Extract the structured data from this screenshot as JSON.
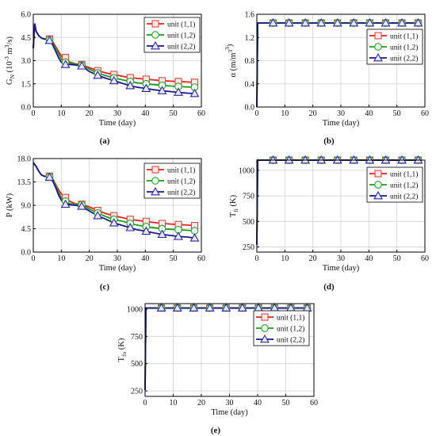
{
  "styles": {
    "colors": [
      "#e8211f",
      "#1f9b1f",
      "#1a1a8c"
    ],
    "fills": [
      "#fde7e7",
      "#e9f7e9",
      "#e6e6f5"
    ],
    "marker_strokes": [
      "#d44a3f",
      "#2f9e2f",
      "#2b2b9a"
    ],
    "markers": [
      "square",
      "circle",
      "triangle"
    ],
    "grid_color": "#d0d0d0"
  },
  "chart_data": [
    {
      "type": "line",
      "caption": "(a)",
      "xlabel": "Time (day)",
      "ylabel_main": "G",
      "ylabel_sub": "N",
      "ylabel_rest": " (10",
      "ylabel_sup": "-3",
      "ylabel_tail": " m",
      "ylabel_sup2": "3",
      "ylabel_end": "/s)",
      "xlim": [
        0,
        60
      ],
      "ylim": [
        0,
        6
      ],
      "xticks": [
        "0",
        "10",
        "20",
        "30",
        "40",
        "50",
        "60"
      ],
      "yticks": [
        "0.0",
        "1.5",
        "3.0",
        "4.5",
        "6.0"
      ],
      "grid": true,
      "legend_position": "top-right",
      "series": [
        {
          "name": "unit (1,1)",
          "x": [
            0,
            0.5,
            1,
            2,
            3,
            4,
            5.8,
            7,
            8,
            9,
            10,
            11.5,
            13,
            15,
            17.3,
            20,
            23,
            26,
            28.8,
            32,
            34.6,
            37,
            40.3,
            43,
            46,
            49,
            51.8,
            55,
            57.6
          ],
          "y": [
            3.8,
            5.4,
            4.9,
            4.6,
            4.45,
            4.4,
            4.4,
            4.2,
            3.9,
            3.6,
            3.3,
            3.2,
            2.9,
            2.8,
            2.75,
            2.55,
            2.35,
            2.2,
            2.1,
            1.98,
            1.9,
            1.85,
            1.8,
            1.75,
            1.7,
            1.67,
            1.65,
            1.62,
            1.6
          ]
        },
        {
          "name": "unit (1,2)",
          "x": [
            0,
            0.5,
            1,
            2,
            3,
            4,
            5.8,
            7,
            8,
            9,
            10,
            11.5,
            13,
            15,
            17.3,
            20,
            23,
            26,
            28.8,
            32,
            34.6,
            37,
            40.3,
            43,
            46,
            49,
            51.8,
            55,
            57.6
          ],
          "y": [
            3.8,
            5.4,
            4.9,
            4.6,
            4.45,
            4.4,
            4.35,
            4.1,
            3.8,
            3.45,
            3.1,
            2.9,
            2.82,
            2.78,
            2.7,
            2.45,
            2.2,
            2.02,
            1.88,
            1.75,
            1.65,
            1.57,
            1.5,
            1.45,
            1.4,
            1.36,
            1.33,
            1.3,
            1.28
          ]
        },
        {
          "name": "unit (2,2)",
          "x": [
            0,
            0.5,
            1,
            2,
            3,
            4,
            5.8,
            7,
            8,
            9,
            10,
            11.5,
            13,
            15,
            17.3,
            20,
            23,
            26,
            28.8,
            32,
            34.6,
            37,
            40.3,
            43,
            46,
            49,
            51.8,
            55,
            57.6
          ],
          "y": [
            3.8,
            5.4,
            4.9,
            4.6,
            4.45,
            4.4,
            4.3,
            4.0,
            3.6,
            3.2,
            2.9,
            2.75,
            2.75,
            2.72,
            2.65,
            2.3,
            2.05,
            1.85,
            1.7,
            1.52,
            1.38,
            1.28,
            1.2,
            1.12,
            1.05,
            1.0,
            0.95,
            0.9,
            0.87
          ]
        }
      ]
    },
    {
      "type": "line",
      "caption": "(b)",
      "xlabel": "Time (day)",
      "ylabel_main": "α (m",
      "ylabel_sup": "3",
      "ylabel_rest": "/m",
      "ylabel_sup2": "3",
      "ylabel_end": ")",
      "xlim": [
        0,
        60
      ],
      "ylim": [
        0,
        1.6
      ],
      "xticks": [
        "0",
        "10",
        "20",
        "30",
        "40",
        "50",
        "60"
      ],
      "yticks": [
        "0.0",
        "0.4",
        "0.8",
        "1.2",
        "1.6"
      ],
      "grid": true,
      "legend_position": "right",
      "series": [
        {
          "name": "unit (1,1)",
          "x": [
            0,
            0.3,
            0.6,
            5.8,
            11.5,
            17.3,
            23,
            28.8,
            34.6,
            40.3,
            46,
            51.8,
            57.6,
            58
          ],
          "y": [
            0,
            1.45,
            1.45,
            1.45,
            1.45,
            1.45,
            1.45,
            1.45,
            1.45,
            1.45,
            1.45,
            1.45,
            1.45,
            1.45
          ]
        },
        {
          "name": "unit (1,2)",
          "x": [
            0,
            0.3,
            0.6,
            5.8,
            11.5,
            17.3,
            23,
            28.8,
            34.6,
            40.3,
            46,
            51.8,
            57.6,
            58
          ],
          "y": [
            0,
            1.45,
            1.45,
            1.45,
            1.45,
            1.45,
            1.45,
            1.45,
            1.45,
            1.45,
            1.45,
            1.45,
            1.45,
            1.45
          ]
        },
        {
          "name": "unit (2,2)",
          "x": [
            0,
            0.3,
            0.6,
            5.8,
            11.5,
            17.3,
            23,
            28.8,
            34.6,
            40.3,
            46,
            51.8,
            57.6,
            58
          ],
          "y": [
            0,
            1.45,
            1.45,
            1.45,
            1.45,
            1.45,
            1.45,
            1.45,
            1.45,
            1.45,
            1.45,
            1.45,
            1.45,
            1.45
          ]
        }
      ]
    },
    {
      "type": "line",
      "caption": "(c)",
      "xlabel": "Time (day)",
      "ylabel_main": "P (kW)",
      "xlim": [
        0,
        60
      ],
      "ylim": [
        0,
        18
      ],
      "xticks": [
        "0",
        "10",
        "20",
        "30",
        "40",
        "50",
        "60"
      ],
      "yticks": [
        "0.0",
        "4.5",
        "9.0",
        "13.5",
        "18.0"
      ],
      "grid": true,
      "legend_position": "top-right",
      "series": [
        {
          "name": "unit (1,1)",
          "x": [
            0,
            1,
            2,
            3,
            4,
            5.8,
            7,
            8,
            9,
            10,
            11.5,
            13,
            15,
            17.3,
            20,
            23,
            26,
            28.8,
            32,
            34.6,
            37,
            40.3,
            43,
            46,
            49,
            51.8,
            55,
            57.6
          ],
          "y": [
            17.2,
            16.5,
            15.5,
            14.8,
            14.6,
            14.6,
            14.0,
            13.0,
            12.0,
            11.2,
            10.5,
            9.8,
            9.3,
            9.2,
            8.7,
            8.0,
            7.4,
            7.0,
            6.6,
            6.3,
            6.1,
            5.9,
            5.7,
            5.5,
            5.4,
            5.3,
            5.2,
            5.1
          ]
        },
        {
          "name": "unit (1,2)",
          "x": [
            0,
            1,
            2,
            3,
            4,
            5.8,
            7,
            8,
            9,
            10,
            11.5,
            13,
            15,
            17.3,
            20,
            23,
            26,
            28.8,
            32,
            34.6,
            37,
            40.3,
            43,
            46,
            49,
            51.8,
            55,
            57.6
          ],
          "y": [
            17.2,
            16.5,
            15.5,
            14.8,
            14.6,
            14.5,
            13.8,
            12.7,
            11.5,
            10.5,
            9.8,
            9.3,
            9.2,
            9.1,
            8.3,
            7.5,
            6.8,
            6.3,
            5.9,
            5.5,
            5.2,
            4.9,
            4.7,
            4.5,
            4.4,
            4.3,
            4.2,
            4.1
          ]
        },
        {
          "name": "unit (2,2)",
          "x": [
            0,
            1,
            2,
            3,
            4,
            5.8,
            7,
            8,
            9,
            10,
            11.5,
            13,
            15,
            17.3,
            20,
            23,
            26,
            28.8,
            32,
            34.6,
            37,
            40.3,
            43,
            46,
            49,
            51.8,
            55,
            57.6
          ],
          "y": [
            17.2,
            16.5,
            15.5,
            14.8,
            14.6,
            14.4,
            13.6,
            12.4,
            11.0,
            10.0,
            9.2,
            9.1,
            9.0,
            8.8,
            7.9,
            7.0,
            6.3,
            5.6,
            5.1,
            4.7,
            4.3,
            4.0,
            3.7,
            3.4,
            3.2,
            3.0,
            2.9,
            2.7
          ]
        }
      ]
    },
    {
      "type": "line",
      "caption": "(d)",
      "xlabel": "Time (day)",
      "ylabel_main": "T",
      "ylabel_sub": "fi",
      "ylabel_rest": " (K)",
      "xlim": [
        0,
        60
      ],
      "ylim": [
        200,
        1100
      ],
      "xticks": [
        "0",
        "10",
        "20",
        "30",
        "40",
        "50",
        "60"
      ],
      "yticks": [
        "250",
        "500",
        "750",
        "1000"
      ],
      "ytick_values": [
        250,
        500,
        750,
        1000
      ],
      "grid": true,
      "legend_position": "right",
      "series": [
        {
          "name": "unit (1,1)",
          "x": [
            0,
            0.3,
            0.6,
            5.8,
            11.5,
            17.3,
            23,
            28.8,
            34.6,
            40.3,
            46,
            51.8,
            57.6,
            58
          ],
          "y": [
            270,
            1100,
            1100,
            1100,
            1100,
            1100,
            1100,
            1100,
            1100,
            1100,
            1100,
            1100,
            1100,
            1100
          ]
        },
        {
          "name": "unit (1,2)",
          "x": [
            0,
            0.3,
            0.6,
            5.8,
            11.5,
            17.3,
            23,
            28.8,
            34.6,
            40.3,
            46,
            51.8,
            57.6,
            58
          ],
          "y": [
            270,
            1100,
            1100,
            1100,
            1100,
            1100,
            1100,
            1100,
            1100,
            1100,
            1100,
            1100,
            1100,
            1100
          ]
        },
        {
          "name": "unit (2,2)",
          "x": [
            0,
            0.3,
            0.6,
            5.8,
            11.5,
            17.3,
            23,
            28.8,
            34.6,
            40.3,
            46,
            51.8,
            57.6,
            58
          ],
          "y": [
            270,
            1100,
            1100,
            1100,
            1100,
            1100,
            1100,
            1100,
            1100,
            1100,
            1100,
            1100,
            1100,
            1100
          ]
        }
      ]
    },
    {
      "type": "line",
      "caption": "(e)",
      "xlabel": "Time (day)",
      "ylabel_main": "T",
      "ylabel_sub": "fo",
      "ylabel_rest": " (K)",
      "xlim": [
        0,
        60
      ],
      "ylim": [
        200,
        1050
      ],
      "xticks": [
        "0",
        "10",
        "20",
        "30",
        "40",
        "50",
        "60"
      ],
      "yticks": [
        "250",
        "500",
        "750",
        "1000"
      ],
      "ytick_values": [
        250,
        500,
        750,
        1000
      ],
      "grid": true,
      "legend_position": "right",
      "series": [
        {
          "name": "unit (1,1)",
          "x": [
            0,
            0.3,
            0.6,
            5.8,
            11.5,
            17.3,
            23,
            28.8,
            34.6,
            40.3,
            46,
            51.8,
            57.6,
            58
          ],
          "y": [
            260,
            1010,
            1010,
            1010,
            1010,
            1010,
            1010,
            1010,
            1010,
            1010,
            1010,
            1010,
            1010,
            1010
          ]
        },
        {
          "name": "unit (1,2)",
          "x": [
            0,
            0.3,
            0.6,
            5.8,
            11.5,
            17.3,
            23,
            28.8,
            34.6,
            40.3,
            46,
            51.8,
            57.6,
            58
          ],
          "y": [
            260,
            1010,
            1010,
            1010,
            1010,
            1010,
            1010,
            1010,
            1010,
            1010,
            1010,
            1010,
            1010,
            1010
          ]
        },
        {
          "name": "unit (2,2)",
          "x": [
            0,
            0.3,
            0.6,
            5.8,
            11.5,
            17.3,
            23,
            28.8,
            34.6,
            40.3,
            46,
            51.8,
            57.6,
            58
          ],
          "y": [
            260,
            1010,
            1010,
            1010,
            1010,
            1010,
            1010,
            1010,
            1010,
            1010,
            1010,
            1010,
            1010,
            1010
          ]
        }
      ]
    }
  ]
}
